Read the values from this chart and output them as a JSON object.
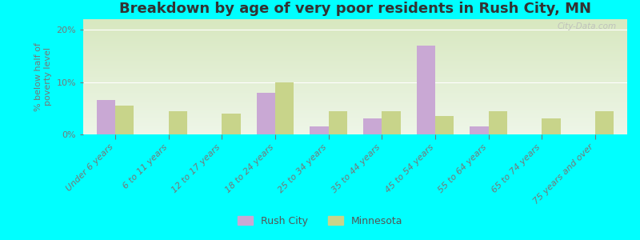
{
  "title": "Breakdown by age of very poor residents in Rush City, MN",
  "ylabel": "% below half of\npoverty level",
  "categories": [
    "Under 6 years",
    "6 to 11 years",
    "12 to 17 years",
    "18 to 24 years",
    "25 to 34 years",
    "35 to 44 years",
    "45 to 54 years",
    "55 to 64 years",
    "65 to 74 years",
    "75 years and over"
  ],
  "rush_city": [
    6.5,
    0,
    0,
    8.0,
    1.5,
    3.0,
    17.0,
    1.5,
    0,
    0
  ],
  "minnesota": [
    5.5,
    4.5,
    4.0,
    10.0,
    4.5,
    4.5,
    3.5,
    4.5,
    3.0,
    4.5
  ],
  "rush_city_color": "#c9a8d4",
  "minnesota_color": "#c8d48a",
  "background_color": "#00ffff",
  "plot_bg_top": "#d8e8c0",
  "plot_bg_bottom": "#eef6e8",
  "ylim": [
    0,
    22
  ],
  "yticks": [
    0,
    10,
    20
  ],
  "ytick_labels": [
    "0%",
    "10%",
    "20%"
  ],
  "bar_width": 0.35,
  "title_fontsize": 13,
  "label_fontsize": 8,
  "tick_color": "#777777",
  "watermark": "City-Data.com"
}
